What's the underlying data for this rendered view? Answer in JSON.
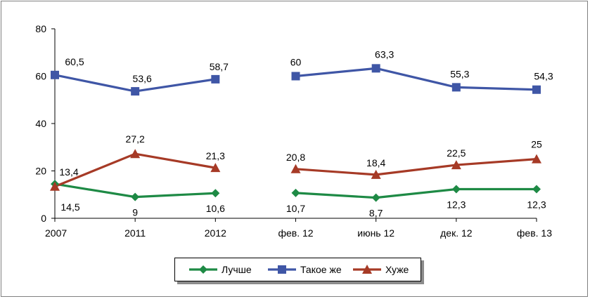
{
  "chart_data": {
    "type": "line",
    "categories": [
      "2007",
      "2011",
      "2012",
      "фев. 12",
      "июнь 12",
      "дек. 12",
      "фев. 13"
    ],
    "ylim": [
      0,
      80
    ],
    "yticks": [
      "0",
      "20",
      "40",
      "60",
      "80"
    ],
    "grid": false,
    "legend_position": "bottom",
    "series": [
      {
        "name": "Лучше",
        "color": "#1e8a45",
        "marker": "diamond",
        "values": [
          14.5,
          9,
          10.6,
          10.7,
          8.7,
          12.3,
          12.3
        ],
        "labels": [
          "14,5",
          "9",
          "10,6",
          "10,7",
          "8,7",
          "12,3",
          "12,3"
        ]
      },
      {
        "name": "Такое же",
        "color": "#3f56a6",
        "marker": "square",
        "values": [
          60.5,
          53.6,
          58.7,
          60,
          63.3,
          55.3,
          54.3
        ],
        "labels": [
          "60,5",
          "53,6",
          "58,7",
          "60",
          "63,3",
          "55,3",
          "54,3"
        ]
      },
      {
        "name": "Хуже",
        "color": "#a63a26",
        "marker": "triangle",
        "values": [
          13.4,
          27.2,
          21.3,
          20.8,
          18.4,
          22.5,
          25
        ],
        "labels": [
          "13,4",
          "27,2",
          "21,3",
          "20,8",
          "18,4",
          "22,5",
          "25"
        ]
      }
    ]
  }
}
